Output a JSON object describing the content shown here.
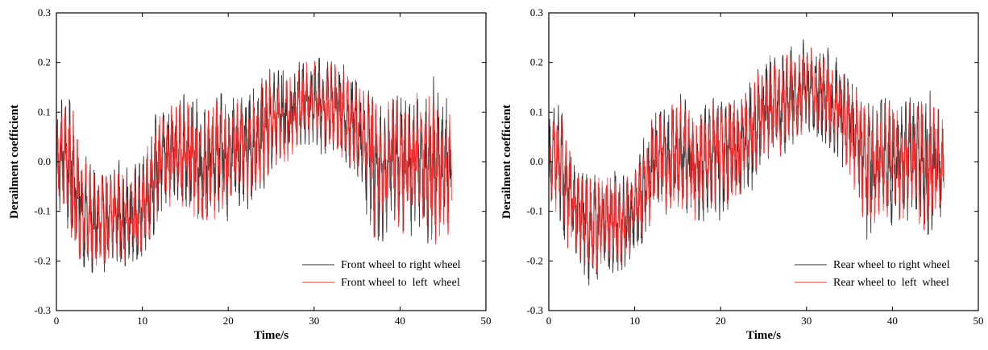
{
  "chart_data": [
    {
      "type": "line",
      "title": "",
      "xlabel": "Time/s",
      "ylabel": "Derailment coefficient",
      "xlim": [
        0,
        50
      ],
      "ylim": [
        -0.3,
        0.3
      ],
      "xticks": [
        0,
        10,
        20,
        30,
        40,
        50
      ],
      "yticks": [
        -0.3,
        -0.2,
        -0.1,
        0.0,
        0.1,
        0.2,
        0.3
      ],
      "xtick_labels": [
        "0",
        "10",
        "20",
        "30",
        "40",
        "50"
      ],
      "ytick_labels": [
        "-0.3",
        "-0.2",
        "-0.1",
        "0.0",
        "0.1",
        "0.2",
        "0.3"
      ],
      "grid": false,
      "legend_position": "bottom-right",
      "series": [
        {
          "name": "Front wheel to right wheel",
          "color": "#333333",
          "x": [
            0,
            1,
            2,
            3,
            4,
            5,
            6,
            7,
            8,
            9,
            10,
            11,
            12,
            13,
            14,
            15,
            16,
            17,
            18,
            19,
            20,
            21,
            22,
            23,
            24,
            25,
            26,
            27,
            28,
            29,
            30,
            31,
            32,
            33,
            34,
            35,
            36,
            37,
            38,
            39,
            40,
            41,
            42,
            43,
            44,
            45,
            46
          ],
          "y": [
            0.0,
            0.02,
            -0.04,
            -0.1,
            -0.12,
            -0.13,
            -0.12,
            -0.1,
            -0.12,
            -0.11,
            -0.1,
            -0.05,
            0.0,
            0.02,
            0.01,
            0.03,
            0.01,
            -0.02,
            0.0,
            0.02,
            0.01,
            0.03,
            0.02,
            0.04,
            0.06,
            0.08,
            0.1,
            0.09,
            0.11,
            0.12,
            0.13,
            0.11,
            0.12,
            0.1,
            0.09,
            0.07,
            0.04,
            0.0,
            -0.02,
            0.02,
            0.0,
            -0.01,
            0.02,
            0.0,
            -0.02,
            0.01,
            -0.03
          ],
          "min": [
            -0.08,
            -0.14,
            -0.2,
            -0.21,
            -0.22,
            -0.24,
            -0.21,
            -0.2,
            -0.21,
            -0.2,
            -0.19,
            -0.16,
            -0.12,
            -0.1,
            -0.11,
            -0.1,
            -0.12,
            -0.15,
            -0.14,
            -0.12,
            -0.12,
            -0.1,
            -0.11,
            -0.08,
            -0.06,
            -0.03,
            0.0,
            -0.02,
            0.02,
            0.03,
            0.04,
            0.01,
            0.03,
            0.0,
            -0.03,
            -0.06,
            -0.12,
            -0.2,
            -0.16,
            -0.12,
            -0.15,
            -0.17,
            -0.13,
            -0.16,
            -0.18,
            -0.15,
            -0.16
          ],
          "max": [
            0.1,
            0.14,
            0.11,
            0.02,
            0.0,
            -0.02,
            -0.01,
            0.02,
            0.0,
            0.0,
            0.01,
            0.08,
            0.11,
            0.12,
            0.13,
            0.16,
            0.14,
            0.1,
            0.12,
            0.14,
            0.13,
            0.14,
            0.12,
            0.15,
            0.17,
            0.19,
            0.21,
            0.18,
            0.2,
            0.21,
            0.22,
            0.2,
            0.21,
            0.2,
            0.19,
            0.16,
            0.15,
            0.13,
            0.12,
            0.14,
            0.13,
            0.12,
            0.15,
            0.13,
            0.19,
            0.14,
            0.12
          ]
        },
        {
          "name": "Front wheel to  left  wheel",
          "color": "#ff2a2a",
          "x": [
            0,
            1,
            2,
            3,
            4,
            5,
            6,
            7,
            8,
            9,
            10,
            11,
            12,
            13,
            14,
            15,
            16,
            17,
            18,
            19,
            20,
            21,
            22,
            23,
            24,
            25,
            26,
            27,
            28,
            29,
            30,
            31,
            32,
            33,
            34,
            35,
            36,
            37,
            38,
            39,
            40,
            41,
            42,
            43,
            44,
            45,
            46
          ],
          "y": [
            0.0,
            0.02,
            -0.04,
            -0.1,
            -0.12,
            -0.13,
            -0.12,
            -0.1,
            -0.12,
            -0.11,
            -0.1,
            -0.05,
            0.0,
            0.02,
            0.01,
            0.03,
            0.01,
            -0.02,
            0.0,
            0.02,
            0.01,
            0.03,
            0.02,
            0.04,
            0.06,
            0.08,
            0.1,
            0.09,
            0.11,
            0.12,
            0.13,
            0.11,
            0.12,
            0.1,
            0.09,
            0.07,
            0.04,
            0.0,
            -0.02,
            0.02,
            0.0,
            -0.01,
            0.02,
            0.0,
            -0.02,
            0.01,
            -0.03
          ],
          "min": [
            -0.07,
            -0.13,
            -0.19,
            -0.2,
            -0.21,
            -0.22,
            -0.2,
            -0.19,
            -0.2,
            -0.19,
            -0.18,
            -0.15,
            -0.11,
            -0.09,
            -0.1,
            -0.09,
            -0.11,
            -0.14,
            -0.13,
            -0.11,
            -0.11,
            -0.09,
            -0.1,
            -0.07,
            -0.05,
            -0.02,
            0.01,
            -0.01,
            0.03,
            0.04,
            0.05,
            0.02,
            0.04,
            0.01,
            -0.02,
            -0.05,
            -0.11,
            -0.19,
            -0.15,
            -0.11,
            -0.14,
            -0.16,
            -0.12,
            -0.15,
            -0.17,
            -0.14,
            -0.15
          ],
          "max": [
            0.09,
            0.13,
            0.1,
            0.01,
            -0.01,
            -0.03,
            -0.02,
            0.01,
            -0.01,
            -0.01,
            0.0,
            0.07,
            0.1,
            0.11,
            0.12,
            0.15,
            0.13,
            0.09,
            0.11,
            0.13,
            0.12,
            0.13,
            0.11,
            0.14,
            0.16,
            0.18,
            0.21,
            0.17,
            0.19,
            0.2,
            0.21,
            0.19,
            0.2,
            0.19,
            0.18,
            0.15,
            0.14,
            0.12,
            0.11,
            0.13,
            0.12,
            0.11,
            0.14,
            0.12,
            0.16,
            0.13,
            0.11
          ]
        }
      ]
    },
    {
      "type": "line",
      "title": "",
      "xlabel": "Time/s",
      "ylabel": "Derailment coefficient",
      "xlim": [
        0,
        50
      ],
      "ylim": [
        -0.3,
        0.3
      ],
      "xticks": [
        0,
        10,
        20,
        30,
        40,
        50
      ],
      "yticks": [
        -0.3,
        -0.2,
        -0.1,
        0.0,
        0.1,
        0.2,
        0.3
      ],
      "xtick_labels": [
        "0",
        "10",
        "20",
        "30",
        "40",
        "50"
      ],
      "ytick_labels": [
        "-0.3",
        "-0.2",
        "-0.1",
        "0.0",
        "0.1",
        "0.2",
        "0.3"
      ],
      "grid": false,
      "legend_position": "bottom-right",
      "series": [
        {
          "name": "Rear wheel to right wheel",
          "color": "#333333",
          "x": [
            0,
            1,
            2,
            3,
            4,
            5,
            6,
            7,
            8,
            9,
            10,
            11,
            12,
            13,
            14,
            15,
            16,
            17,
            18,
            19,
            20,
            21,
            22,
            23,
            24,
            25,
            26,
            27,
            28,
            29,
            30,
            31,
            32,
            33,
            34,
            35,
            36,
            37,
            38,
            39,
            40,
            41,
            42,
            43,
            44,
            45,
            46
          ],
          "y": [
            0.0,
            0.01,
            -0.05,
            -0.09,
            -0.12,
            -0.14,
            -0.13,
            -0.11,
            -0.13,
            -0.12,
            -0.1,
            -0.06,
            -0.01,
            0.01,
            0.0,
            0.02,
            0.01,
            -0.01,
            0.0,
            0.02,
            0.01,
            0.03,
            0.02,
            0.05,
            0.07,
            0.1,
            0.12,
            0.11,
            0.13,
            0.14,
            0.15,
            0.13,
            0.14,
            0.12,
            0.1,
            0.08,
            0.04,
            -0.01,
            -0.02,
            0.02,
            0.0,
            -0.01,
            0.02,
            0.0,
            -0.02,
            0.01,
            -0.02
          ],
          "min": [
            -0.07,
            -0.13,
            -0.18,
            -0.2,
            -0.23,
            -0.26,
            -0.24,
            -0.22,
            -0.23,
            -0.21,
            -0.19,
            -0.16,
            -0.12,
            -0.1,
            -0.11,
            -0.1,
            -0.12,
            -0.14,
            -0.13,
            -0.11,
            -0.12,
            -0.1,
            -0.11,
            -0.08,
            -0.05,
            -0.02,
            0.01,
            0.0,
            0.03,
            0.04,
            0.05,
            0.02,
            0.04,
            0.01,
            -0.02,
            -0.06,
            -0.12,
            -0.19,
            -0.15,
            -0.12,
            -0.14,
            -0.15,
            -0.12,
            -0.14,
            -0.15,
            -0.13,
            -0.1
          ],
          "max": [
            0.09,
            0.12,
            0.08,
            0.02,
            0.0,
            -0.03,
            -0.02,
            0.0,
            -0.02,
            -0.01,
            0.0,
            0.06,
            0.1,
            0.11,
            0.12,
            0.14,
            0.13,
            0.09,
            0.11,
            0.13,
            0.12,
            0.13,
            0.12,
            0.15,
            0.18,
            0.2,
            0.24,
            0.21,
            0.23,
            0.24,
            0.25,
            0.23,
            0.24,
            0.22,
            0.2,
            0.16,
            0.15,
            0.12,
            0.11,
            0.13,
            0.12,
            0.11,
            0.13,
            0.12,
            0.23,
            0.13,
            0.1
          ]
        },
        {
          "name": "Rear wheel to  left  wheel",
          "color": "#ff2a2a",
          "x": [
            0,
            1,
            2,
            3,
            4,
            5,
            6,
            7,
            8,
            9,
            10,
            11,
            12,
            13,
            14,
            15,
            16,
            17,
            18,
            19,
            20,
            21,
            22,
            23,
            24,
            25,
            26,
            27,
            28,
            29,
            30,
            31,
            32,
            33,
            34,
            35,
            36,
            37,
            38,
            39,
            40,
            41,
            42,
            43,
            44,
            45,
            46
          ],
          "y": [
            0.0,
            0.01,
            -0.05,
            -0.09,
            -0.12,
            -0.14,
            -0.13,
            -0.11,
            -0.13,
            -0.12,
            -0.1,
            -0.06,
            -0.01,
            0.01,
            0.0,
            0.02,
            0.01,
            -0.01,
            0.0,
            0.02,
            0.01,
            0.03,
            0.02,
            0.05,
            0.07,
            0.1,
            0.12,
            0.11,
            0.13,
            0.14,
            0.15,
            0.13,
            0.14,
            0.12,
            0.1,
            0.08,
            0.04,
            -0.01,
            -0.02,
            0.02,
            0.0,
            -0.01,
            0.02,
            0.0,
            -0.02,
            0.01,
            -0.02
          ],
          "min": [
            -0.06,
            -0.12,
            -0.17,
            -0.19,
            -0.22,
            -0.25,
            -0.23,
            -0.21,
            -0.22,
            -0.2,
            -0.18,
            -0.15,
            -0.11,
            -0.09,
            -0.1,
            -0.09,
            -0.11,
            -0.13,
            -0.12,
            -0.1,
            -0.11,
            -0.09,
            -0.1,
            -0.07,
            -0.04,
            -0.01,
            0.02,
            0.01,
            0.04,
            0.05,
            0.06,
            0.03,
            0.05,
            0.02,
            -0.01,
            -0.05,
            -0.11,
            -0.19,
            -0.14,
            -0.11,
            -0.13,
            -0.14,
            -0.11,
            -0.13,
            -0.14,
            -0.12,
            -0.09
          ],
          "max": [
            0.08,
            0.11,
            0.07,
            0.01,
            -0.01,
            -0.04,
            -0.03,
            -0.01,
            -0.03,
            -0.02,
            -0.01,
            0.05,
            0.09,
            0.1,
            0.11,
            0.13,
            0.12,
            0.08,
            0.1,
            0.12,
            0.11,
            0.12,
            0.11,
            0.14,
            0.17,
            0.19,
            0.24,
            0.2,
            0.22,
            0.23,
            0.24,
            0.22,
            0.23,
            0.21,
            0.19,
            0.15,
            0.14,
            0.11,
            0.1,
            0.12,
            0.11,
            0.1,
            0.12,
            0.11,
            0.17,
            0.12,
            0.09
          ]
        }
      ]
    }
  ]
}
